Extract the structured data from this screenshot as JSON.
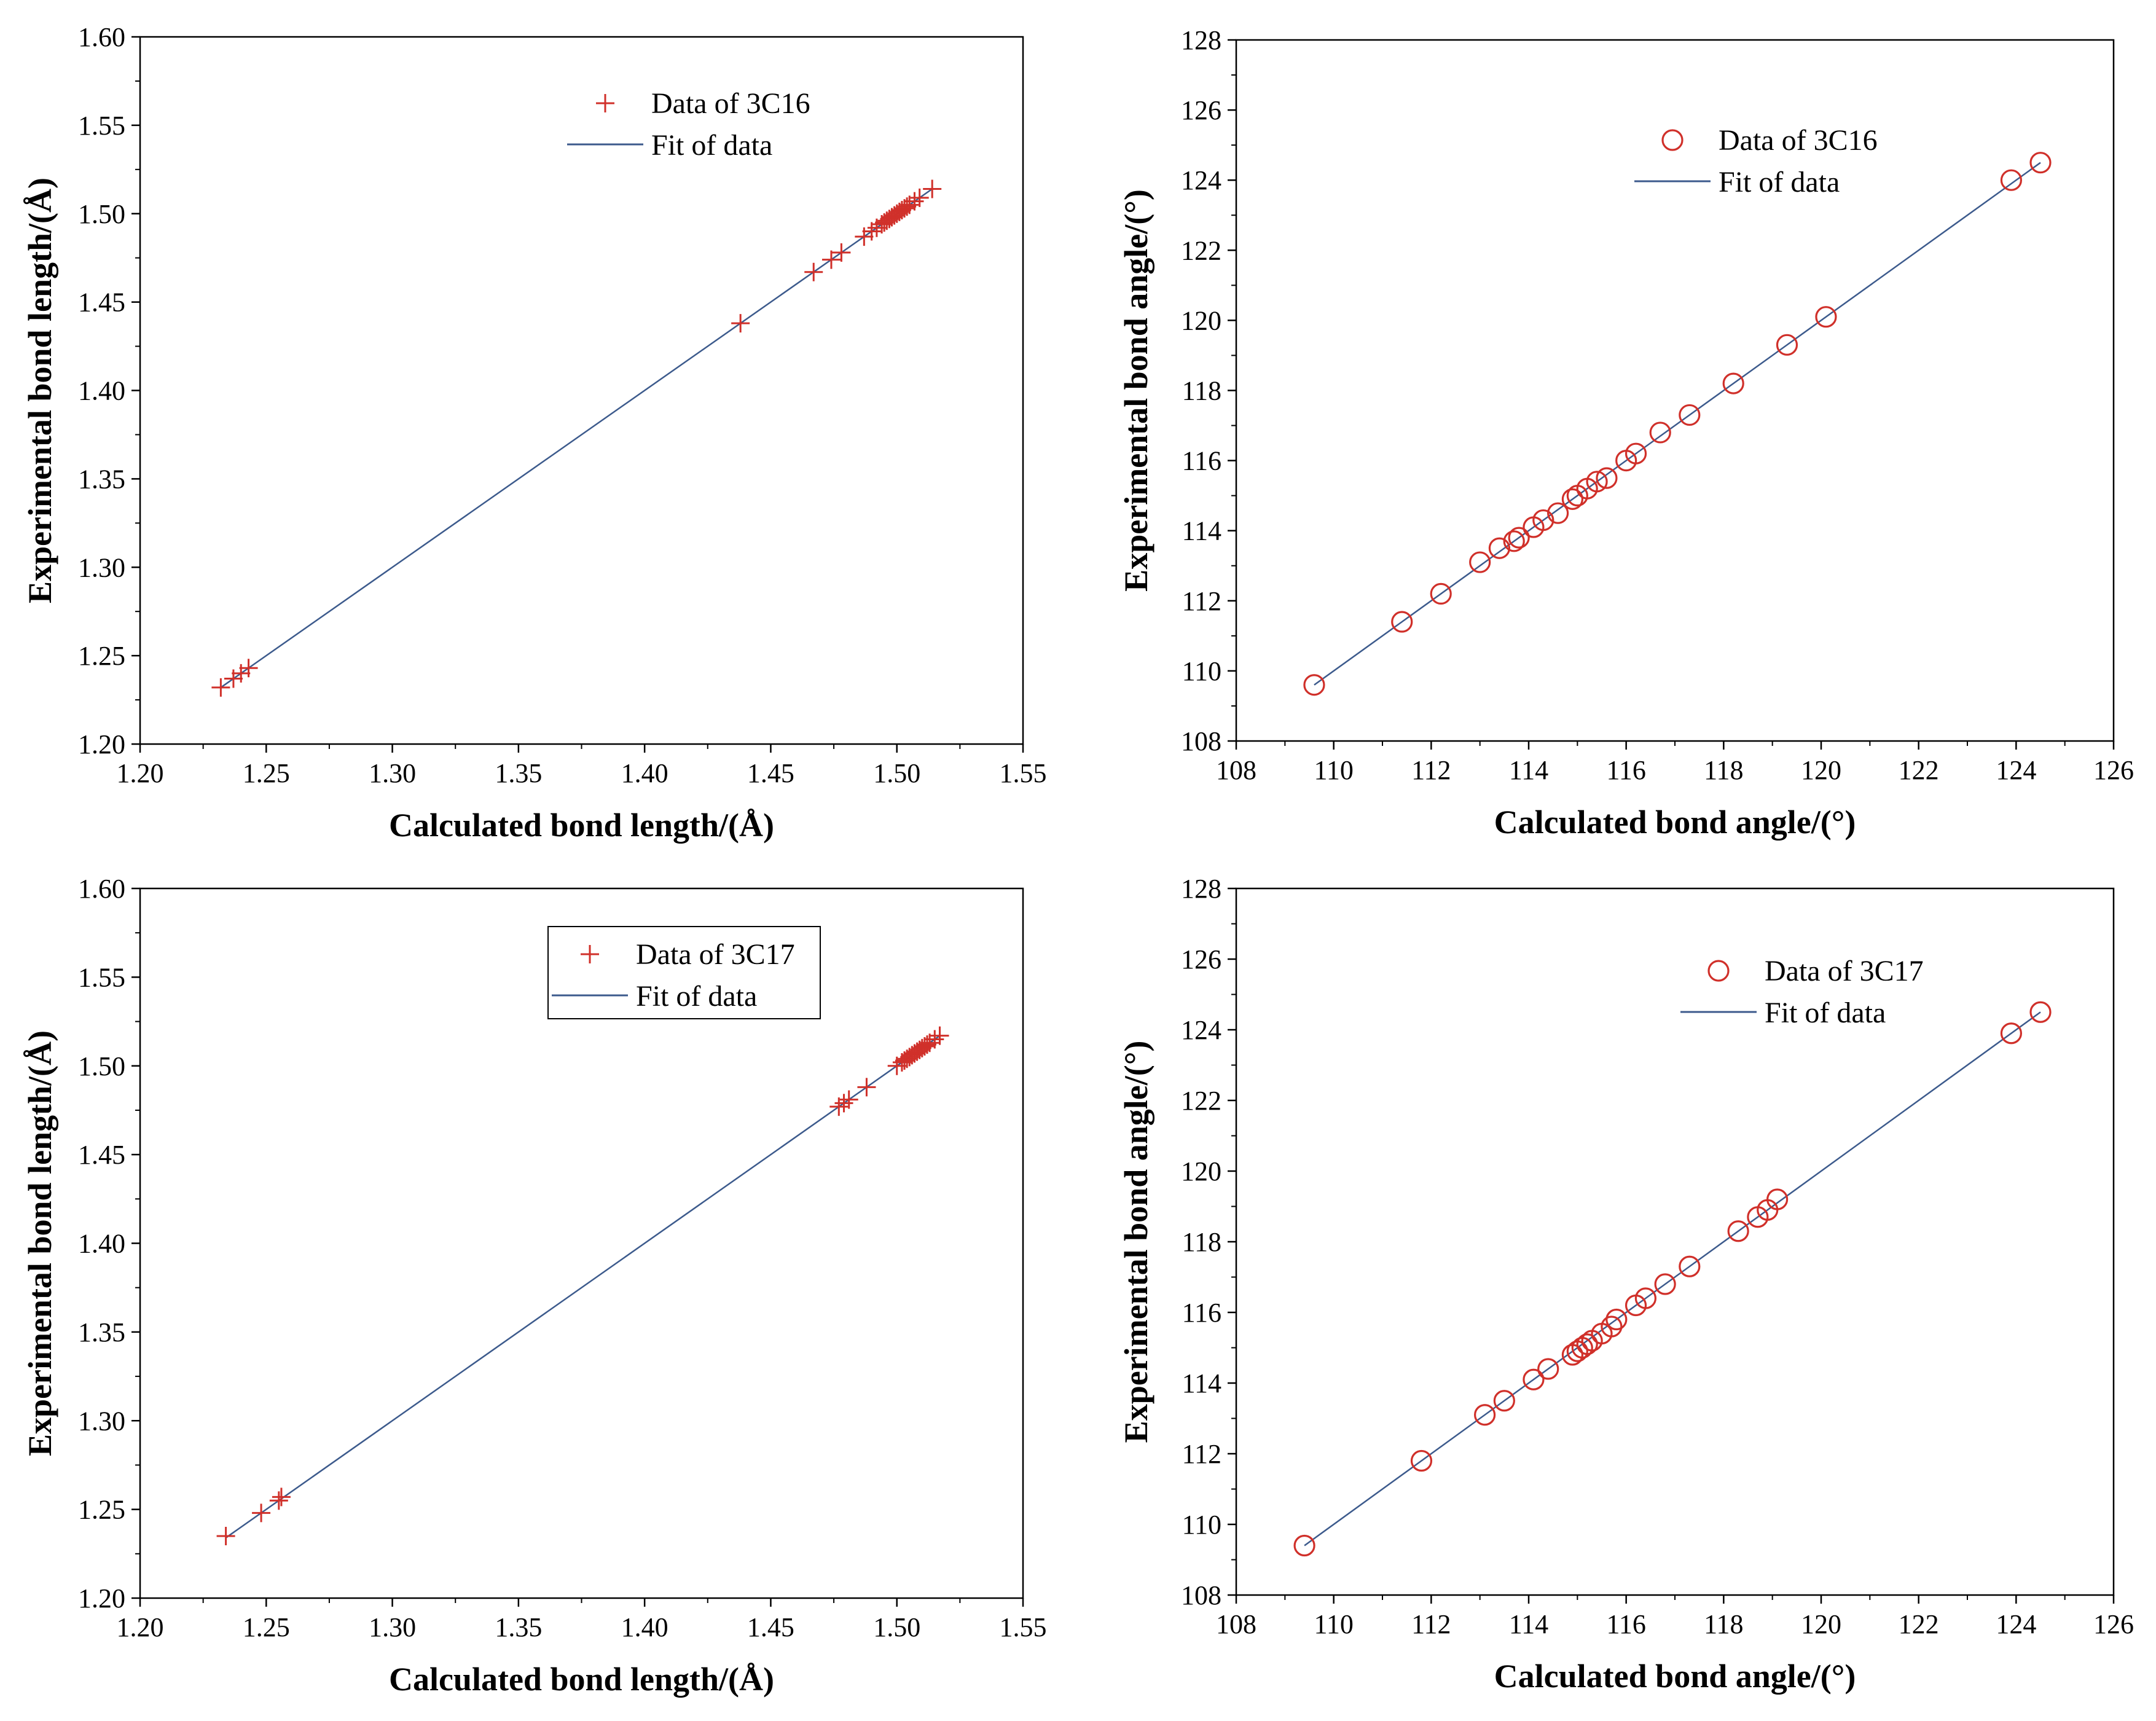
{
  "colors": {
    "marker": "#d0302a",
    "fit": "#3c5a8c",
    "axis": "#000000",
    "legend_box": "#000000"
  },
  "chart_data": [
    {
      "type": "scatter",
      "marker": "plus",
      "xlabel": "Calculated bond length/(Å)",
      "ylabel": "Experimental bond length/(Å)",
      "xlim": [
        1.2,
        1.55
      ],
      "ylim": [
        1.2,
        1.6
      ],
      "xticks": [
        1.2,
        1.25,
        1.3,
        1.35,
        1.4,
        1.45,
        1.5,
        1.55
      ],
      "yticks": [
        1.2,
        1.25,
        1.3,
        1.35,
        1.4,
        1.45,
        1.5,
        1.55,
        1.6
      ],
      "tick_decimals": 2,
      "legend": {
        "data_label": "Data of 3C16",
        "fit_label": "Fit of data",
        "boxed": false,
        "placement": "top-center"
      },
      "x": [
        1.232,
        1.237,
        1.24,
        1.243,
        1.438,
        1.467,
        1.474,
        1.478,
        1.487,
        1.49,
        1.492,
        1.494,
        1.495,
        1.496,
        1.497,
        1.498,
        1.499,
        1.5,
        1.501,
        1.502,
        1.503,
        1.504,
        1.505,
        1.507,
        1.509,
        1.514
      ],
      "y": [
        1.232,
        1.237,
        1.24,
        1.243,
        1.438,
        1.467,
        1.474,
        1.478,
        1.487,
        1.49,
        1.492,
        1.494,
        1.495,
        1.496,
        1.497,
        1.498,
        1.499,
        1.5,
        1.501,
        1.502,
        1.503,
        1.504,
        1.505,
        1.507,
        1.509,
        1.514
      ],
      "fit": {
        "x": [
          1.232,
          1.514
        ],
        "y": [
          1.232,
          1.514
        ]
      }
    },
    {
      "type": "scatter",
      "marker": "circle",
      "xlabel": "Calculated bond angle/(°)",
      "ylabel": "Experimental bond angle/(°)",
      "xlim": [
        108,
        126
      ],
      "ylim": [
        108,
        128
      ],
      "xticks": [
        108,
        110,
        112,
        114,
        116,
        118,
        120,
        122,
        124,
        126
      ],
      "yticks": [
        108,
        110,
        112,
        114,
        116,
        118,
        120,
        122,
        124,
        126,
        128
      ],
      "tick_decimals": 0,
      "legend": {
        "data_label": "Data of 3C16",
        "fit_label": "Fit of data",
        "boxed": false,
        "placement": "top-center"
      },
      "x": [
        109.6,
        111.4,
        112.2,
        113.0,
        113.4,
        113.7,
        113.8,
        114.1,
        114.3,
        114.6,
        114.9,
        115.0,
        115.2,
        115.4,
        115.6,
        116.0,
        116.2,
        116.7,
        117.3,
        118.2,
        119.3,
        120.1,
        123.9,
        124.5
      ],
      "y": [
        109.6,
        111.4,
        112.2,
        113.1,
        113.5,
        113.7,
        113.8,
        114.1,
        114.3,
        114.5,
        114.9,
        115.0,
        115.2,
        115.4,
        115.5,
        116.0,
        116.2,
        116.8,
        117.3,
        118.2,
        119.3,
        120.1,
        124.0,
        124.5
      ],
      "fit": {
        "x": [
          109.6,
          124.5
        ],
        "y": [
          109.6,
          124.5
        ]
      }
    },
    {
      "type": "scatter",
      "marker": "plus",
      "xlabel": "Calculated bond length/(Å)",
      "ylabel": "Experimental bond length/(Å)",
      "xlim": [
        1.2,
        1.55
      ],
      "ylim": [
        1.2,
        1.6
      ],
      "xticks": [
        1.2,
        1.25,
        1.3,
        1.35,
        1.4,
        1.45,
        1.5,
        1.55
      ],
      "yticks": [
        1.2,
        1.25,
        1.3,
        1.35,
        1.4,
        1.45,
        1.5,
        1.55,
        1.6
      ],
      "tick_decimals": 2,
      "legend": {
        "data_label": "Data of 3C17",
        "fit_label": "Fit of data",
        "boxed": true,
        "placement": "top-center"
      },
      "x": [
        1.234,
        1.248,
        1.255,
        1.256,
        1.477,
        1.479,
        1.481,
        1.488,
        1.5,
        1.502,
        1.503,
        1.504,
        1.505,
        1.506,
        1.507,
        1.508,
        1.509,
        1.51,
        1.511,
        1.512,
        1.513,
        1.515,
        1.517
      ],
      "y": [
        1.235,
        1.248,
        1.255,
        1.257,
        1.477,
        1.479,
        1.481,
        1.488,
        1.5,
        1.502,
        1.503,
        1.504,
        1.505,
        1.506,
        1.507,
        1.508,
        1.509,
        1.51,
        1.511,
        1.512,
        1.513,
        1.515,
        1.517
      ],
      "fit": {
        "x": [
          1.234,
          1.517
        ],
        "y": [
          1.234,
          1.517
        ]
      }
    },
    {
      "type": "scatter",
      "marker": "circle",
      "xlabel": "Calculated bond angle/(°)",
      "ylabel": "Experimental bond angle/(°)",
      "xlim": [
        108,
        126
      ],
      "ylim": [
        108,
        128
      ],
      "xticks": [
        108,
        110,
        112,
        114,
        116,
        118,
        120,
        122,
        124,
        126
      ],
      "yticks": [
        108,
        110,
        112,
        114,
        116,
        118,
        120,
        122,
        124,
        126,
        128
      ],
      "tick_decimals": 0,
      "legend": {
        "data_label": "Data of 3C17",
        "fit_label": "Fit of data",
        "boxed": false,
        "placement": "top-center"
      },
      "x": [
        109.4,
        111.8,
        113.1,
        113.5,
        114.1,
        114.4,
        114.9,
        115.0,
        115.1,
        115.2,
        115.3,
        115.5,
        115.7,
        115.8,
        116.2,
        116.4,
        116.8,
        117.3,
        118.3,
        118.7,
        118.9,
        119.1,
        123.9,
        124.5
      ],
      "y": [
        109.4,
        111.8,
        113.1,
        113.5,
        114.1,
        114.4,
        114.8,
        114.9,
        115.0,
        115.1,
        115.2,
        115.4,
        115.6,
        115.8,
        116.2,
        116.4,
        116.8,
        117.3,
        118.3,
        118.7,
        118.9,
        119.2,
        123.9,
        124.5
      ],
      "fit": {
        "x": [
          109.4,
          124.5
        ],
        "y": [
          109.4,
          124.5
        ]
      }
    }
  ]
}
